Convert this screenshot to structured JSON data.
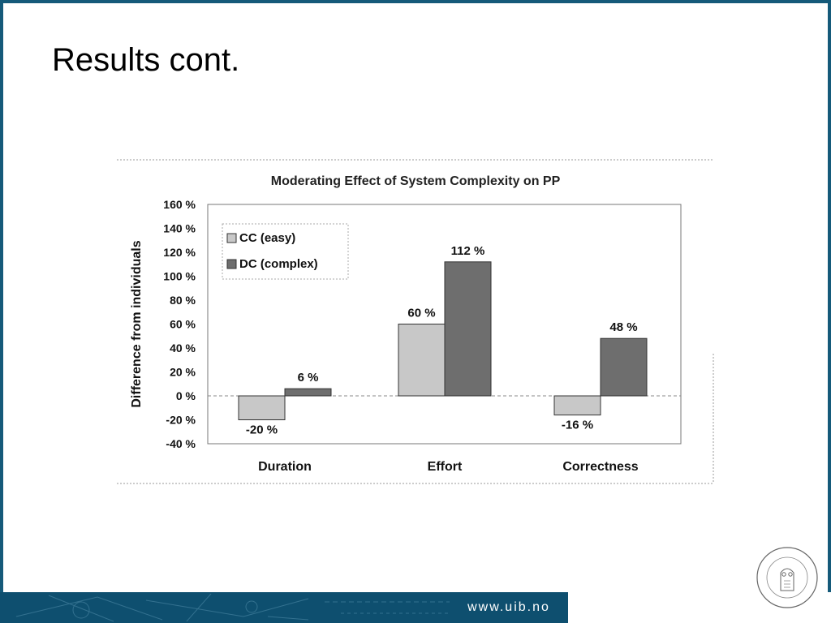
{
  "slide": {
    "title": "Results cont.",
    "footer_url": "www.uib.no",
    "seal_text": "UNIVERSITAS BERGENSIS",
    "frame_color": "#155a7a",
    "footer_color": "#0e4f6f"
  },
  "chart_data": {
    "type": "bar",
    "title": "Moderating Effect of System Complexity on PP",
    "ylabel": "Difference from individuals",
    "xlabel": "",
    "categories": [
      "Duration",
      "Effort",
      "Correctness"
    ],
    "series": [
      {
        "name": "CC (easy)",
        "values": [
          -20,
          60,
          -16
        ],
        "labels": [
          "-20 %",
          "60 %",
          "-16 %"
        ],
        "color": "#c8c8c8"
      },
      {
        "name": "DC (complex)",
        "values": [
          6,
          112,
          48
        ],
        "labels": [
          "6 %",
          "112 %",
          "48 %"
        ],
        "color": "#6e6e6e"
      }
    ],
    "ylim": [
      -40,
      160
    ],
    "yticks": [
      -40,
      -20,
      0,
      20,
      40,
      60,
      80,
      100,
      120,
      140,
      160
    ],
    "ytick_labels": [
      "-40 %",
      "-20 %",
      "0 %",
      "20 %",
      "40 %",
      "60 %",
      "80 %",
      "100 %",
      "120 %",
      "140 %",
      "160 %"
    ],
    "legend_position": "top-left",
    "grid": false
  }
}
